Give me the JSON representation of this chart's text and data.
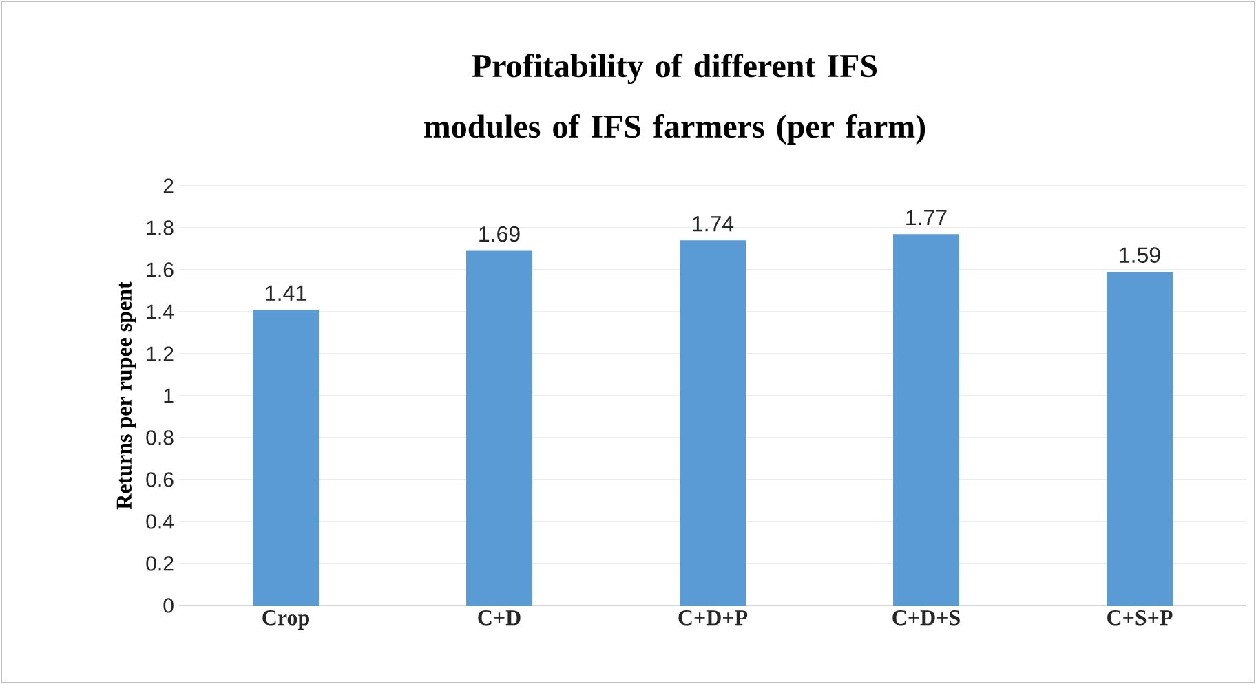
{
  "chart_data": {
    "type": "bar",
    "title": "Profitability of different IFS modules of IFS farmers (per farm)",
    "ylabel": "Returns per rupee spent",
    "categories": [
      "Crop",
      "C+D",
      "C+D+P",
      "C+D+S",
      "C+S+P"
    ],
    "values": [
      1.41,
      1.69,
      1.74,
      1.77,
      1.59
    ],
    "color": "#5b9bd5",
    "ylim": [
      0,
      2
    ],
    "yticks": [
      0,
      0.2,
      0.4,
      0.6,
      0.8,
      1,
      1.2,
      1.4,
      1.6,
      1.8,
      2
    ],
    "grid": "y",
    "data_labels": true
  }
}
